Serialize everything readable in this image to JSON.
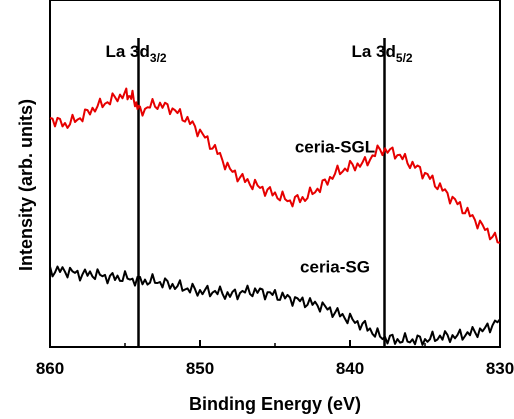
{
  "chart_data": {
    "type": "line",
    "xlabel": "Binding Energy (eV)",
    "ylabel": "Intensity (arb. units)",
    "xlim": [
      860,
      830
    ],
    "x_reversed": true,
    "y_ticks_shown": false,
    "xticks": [
      "860",
      "850",
      "840",
      "830"
    ],
    "grid": false,
    "legend": "none",
    "series": [
      {
        "name": "ceria-SGL",
        "color": "#e60000",
        "x": [
          860,
          859,
          858,
          857,
          856,
          855,
          854.5,
          854,
          853,
          852,
          851,
          850,
          849,
          848,
          847,
          846,
          845,
          844,
          843,
          842,
          841,
          840,
          839,
          838,
          837,
          836,
          835,
          834,
          833,
          832,
          831,
          830
        ],
        "y": [
          0.66,
          0.64,
          0.66,
          0.69,
          0.71,
          0.73,
          0.72,
          0.68,
          0.7,
          0.69,
          0.66,
          0.62,
          0.57,
          0.51,
          0.48,
          0.46,
          0.44,
          0.42,
          0.43,
          0.46,
          0.5,
          0.52,
          0.53,
          0.57,
          0.56,
          0.53,
          0.5,
          0.46,
          0.42,
          0.38,
          0.34,
          0.3
        ]
      },
      {
        "name": "ceria-SG",
        "color": "#000000",
        "x": [
          860,
          859,
          858,
          857,
          856,
          855,
          854,
          853,
          852,
          851,
          850,
          849,
          848,
          847,
          846,
          845,
          844,
          843,
          842,
          841,
          840,
          839,
          838,
          837,
          836,
          835,
          834,
          833,
          832,
          831,
          830
        ],
        "y": [
          0.22,
          0.22,
          0.21,
          0.21,
          0.2,
          0.2,
          0.19,
          0.19,
          0.18,
          0.17,
          0.16,
          0.16,
          0.15,
          0.16,
          0.16,
          0.15,
          0.14,
          0.13,
          0.12,
          0.1,
          0.08,
          0.06,
          0.03,
          0.02,
          0.02,
          0.02,
          0.03,
          0.03,
          0.04,
          0.05,
          0.08
        ]
      }
    ],
    "reference_lines": [
      {
        "x": 854.1,
        "label_main": "La 3d",
        "label_sub": "3/2"
      },
      {
        "x": 837.7,
        "label_main": "La 3d",
        "label_sub": "5/2"
      }
    ],
    "annotations": [
      {
        "text": "ceria-SGL",
        "x": 841,
        "y": 0.56
      },
      {
        "text": "ceria-SG",
        "x": 841,
        "y": 0.215
      }
    ]
  }
}
